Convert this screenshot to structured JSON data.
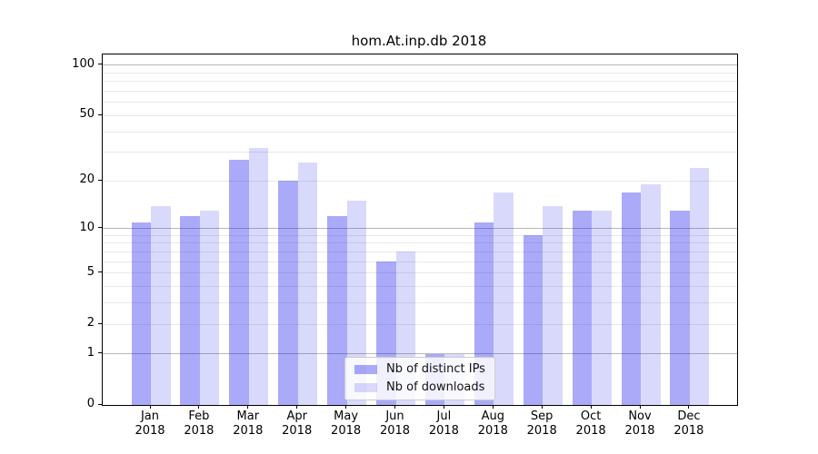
{
  "title": "hom.At.inp.db 2018",
  "chart_data": {
    "type": "bar",
    "title": "hom.At.inp.db 2018",
    "categories": [
      "Jan 2018",
      "Feb 2018",
      "Mar 2018",
      "Apr 2018",
      "May 2018",
      "Jun 2018",
      "Jul 2018",
      "Aug 2018",
      "Sep 2018",
      "Oct 2018",
      "Nov 2018",
      "Dec 2018"
    ],
    "month_labels": [
      "Jan",
      "Feb",
      "Mar",
      "Apr",
      "May",
      "Jun",
      "Jul",
      "Aug",
      "Sep",
      "Oct",
      "Nov",
      "Dec"
    ],
    "year_label": "2018",
    "series": [
      {
        "name": "Nb of distinct IPs",
        "color": "rgba(20,20,235,0.36)",
        "values": [
          11,
          12,
          27,
          20,
          12,
          6,
          1,
          11,
          9,
          13,
          17,
          13
        ]
      },
      {
        "name": "Nb of downloads",
        "color": "rgba(20,20,235,0.16)",
        "values": [
          14,
          13,
          32,
          26,
          15,
          7,
          1,
          17,
          14,
          13,
          19,
          24
        ]
      }
    ],
    "xlabel": "",
    "ylabel": "",
    "yscale": "log10(1+y)",
    "ylim": [
      0,
      116
    ],
    "y_tick_values": [
      100,
      50,
      20,
      10,
      5,
      2,
      1,
      0
    ],
    "y_tick_labels": [
      "100",
      "50",
      "20",
      "10",
      "5",
      "2",
      "1",
      "0"
    ],
    "y_major_gridlines": [
      1,
      10,
      100
    ],
    "y_minor_gridlines": [
      2,
      3,
      4,
      5,
      6,
      7,
      8,
      9,
      20,
      30,
      40,
      50,
      60,
      70,
      80,
      90
    ],
    "grid": true,
    "legend_position": "lower center inside plot"
  },
  "legend": {
    "items": [
      {
        "label": "Nb of distinct IPs",
        "color": "rgba(20,20,235,0.36)"
      },
      {
        "label": "Nb of downloads",
        "color": "rgba(20,20,235,0.16)"
      }
    ]
  },
  "colors": {
    "bar_dark": "rgba(20,20,235,0.36)",
    "bar_light": "rgba(20,20,235,0.16)",
    "grid_major": "#b8b8b8",
    "grid_minor": "#e9e9e9",
    "spine": "#000000",
    "background": "#ffffff"
  }
}
